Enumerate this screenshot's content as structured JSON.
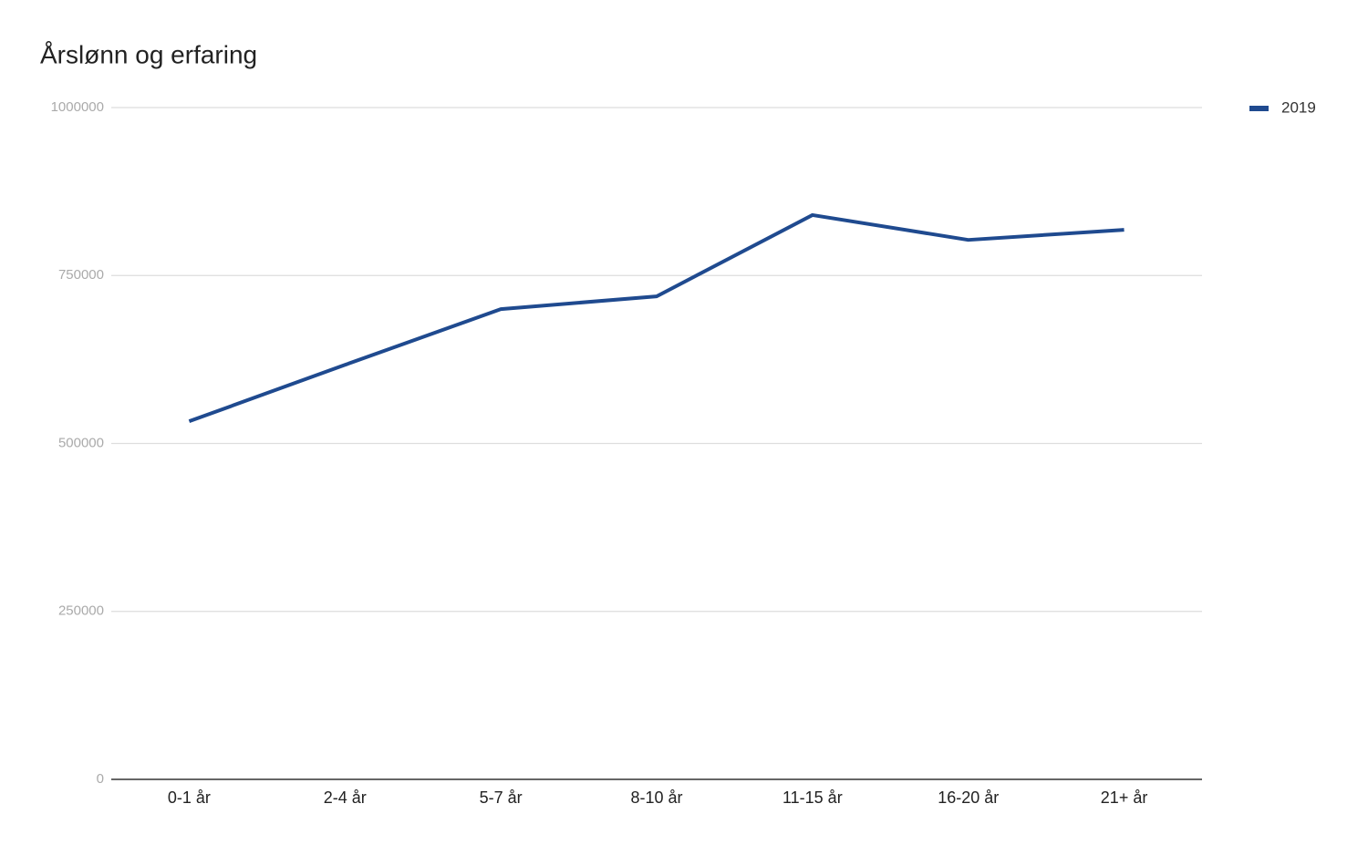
{
  "chart_data": {
    "type": "line",
    "title": "Årslønn og erfaring",
    "categories": [
      "0-1 år",
      "2-4 år",
      "5-7 år",
      "8-10 år",
      "11-15 år",
      "16-20 år",
      "21+ år"
    ],
    "series": [
      {
        "name": "2019",
        "color": "#1f4a8f",
        "values": [
          533000,
          617000,
          700000,
          719000,
          840000,
          803000,
          818000
        ]
      }
    ],
    "ylim": [
      0,
      1000000
    ],
    "yticks": [
      0,
      250000,
      500000,
      750000,
      1000000
    ],
    "grid": true,
    "legend": "top-right"
  }
}
